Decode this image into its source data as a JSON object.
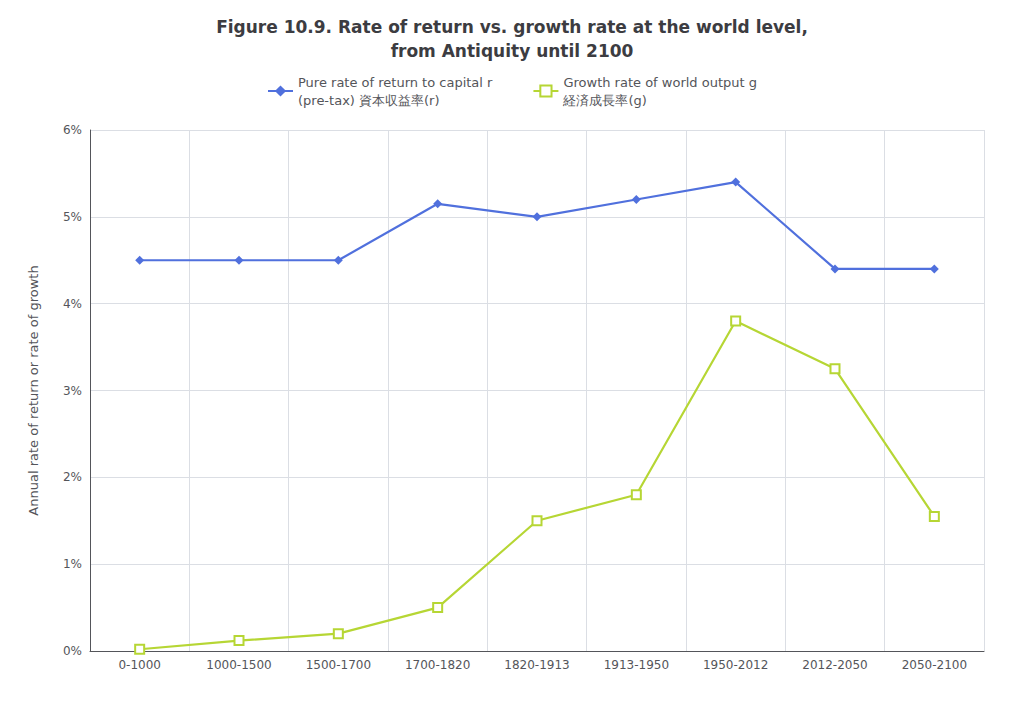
{
  "chart_data": {
    "type": "line",
    "title": "Figure 10.9. Rate of return vs. growth rate at the world level,\nfrom Antiquity until 2100",
    "ylabel": "Annual rate of return or rate of growth",
    "categories": [
      "0-1000",
      "1000-1500",
      "1500-1700",
      "1700-1820",
      "1820-1913",
      "1913-1950",
      "1950-2012",
      "2012-2050",
      "2050-2100"
    ],
    "series": [
      {
        "name": "Pure rate of return to capital r\n(pre-tax) 資本収益率(r)",
        "marker": "diamond",
        "line_style": "solid",
        "values": [
          4.5,
          4.5,
          4.5,
          5.15,
          5.0,
          5.2,
          5.4,
          4.4,
          4.4
        ]
      },
      {
        "name": "Growth rate of world output g\n経済成長率(g)",
        "marker": "open_square",
        "line_style": "solid",
        "values": [
          0.02,
          0.12,
          0.2,
          0.5,
          1.5,
          1.8,
          3.8,
          3.25,
          1.55
        ]
      }
    ],
    "ylim": [
      0,
      6
    ],
    "yticks": [
      {
        "value": 0,
        "label": "0%"
      },
      {
        "value": 1,
        "label": "1%"
      },
      {
        "value": 2,
        "label": "2%"
      },
      {
        "value": 3,
        "label": "3%"
      },
      {
        "value": 4,
        "label": "4%"
      },
      {
        "value": 5,
        "label": "5%"
      },
      {
        "value": 6,
        "label": "6%"
      }
    ],
    "grid": true,
    "legend": "top"
  }
}
